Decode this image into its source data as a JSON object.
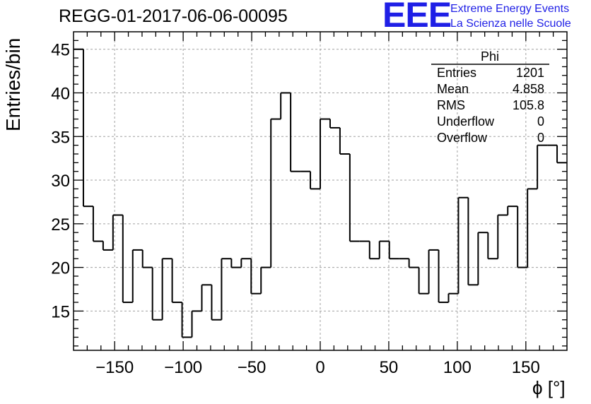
{
  "title": "REGG-01-2017-06-06-00095",
  "logo": {
    "mark": "EEE",
    "line1": "Extreme Energy Events",
    "line2": "La Scienza nelle Scuole"
  },
  "stats": {
    "title": "Phi",
    "rows": [
      {
        "label": "Entries",
        "value": "1201"
      },
      {
        "label": "Mean",
        "value": "4.858"
      },
      {
        "label": "RMS",
        "value": "105.8"
      },
      {
        "label": "Underflow",
        "value": "0"
      },
      {
        "label": "Overflow",
        "value": "0"
      }
    ]
  },
  "colors": {
    "axis": "#000000",
    "grid": "#a0a0a0",
    "line": "#000000",
    "logo": "#1f1fe6"
  },
  "chart_data": {
    "type": "histogram",
    "title": "REGG-01-2017-06-06-00095",
    "xlabel": "ϕ [°]",
    "ylabel": "Entries/bin",
    "xlim": [
      -180,
      180
    ],
    "ylim": [
      10.5,
      47
    ],
    "grid": true,
    "legend": "stats box top-right",
    "xticks": [
      -150,
      -100,
      -50,
      0,
      50,
      100,
      150
    ],
    "yticks": [
      15,
      20,
      25,
      30,
      35,
      40,
      45
    ],
    "bin_edges_start": -180,
    "bin_width": 7.2,
    "values": [
      45,
      27,
      23,
      22,
      26,
      16,
      22,
      20,
      14,
      21,
      16,
      12,
      15,
      18,
      14,
      21,
      20,
      21,
      17,
      20,
      37,
      40,
      31,
      31,
      29,
      37,
      36,
      33,
      23,
      23,
      21,
      23,
      21,
      21,
      20,
      17,
      22,
      16,
      17,
      28,
      18,
      24,
      21,
      26,
      27,
      20,
      29,
      34,
      34,
      32
    ]
  }
}
